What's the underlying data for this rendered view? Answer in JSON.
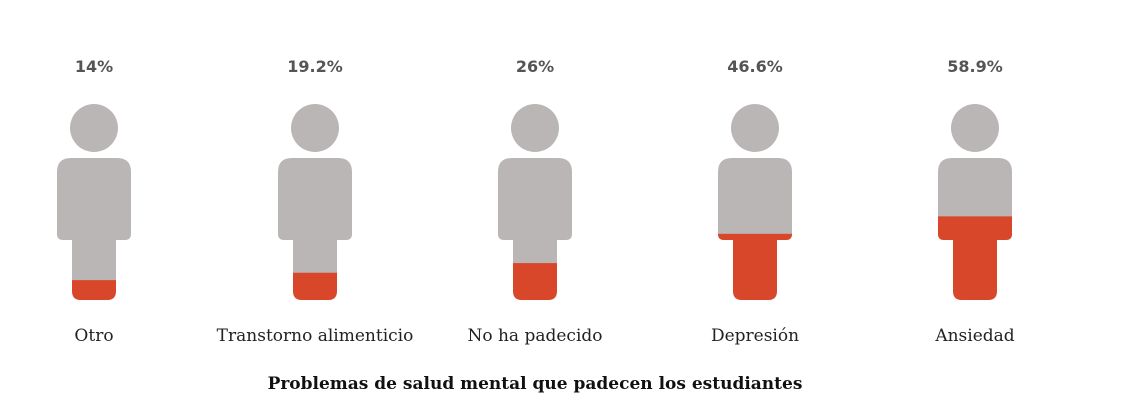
{
  "chart_data": {
    "type": "pictograph",
    "title": "Problemas de salud mental que padecen los estudiantes",
    "unit": "%",
    "categories": [
      "Otro",
      "Transtorno alimenticio",
      "No ha padecido",
      "Depresión",
      "Ansiedad"
    ],
    "values": [
      14,
      19.2,
      26,
      46.6,
      58.9
    ],
    "value_labels": [
      "14%",
      "19.2%",
      "26%",
      "46.6%",
      "58.9%"
    ],
    "colors": {
      "fill": "#d9472b",
      "empty": "#bab6b6"
    }
  }
}
